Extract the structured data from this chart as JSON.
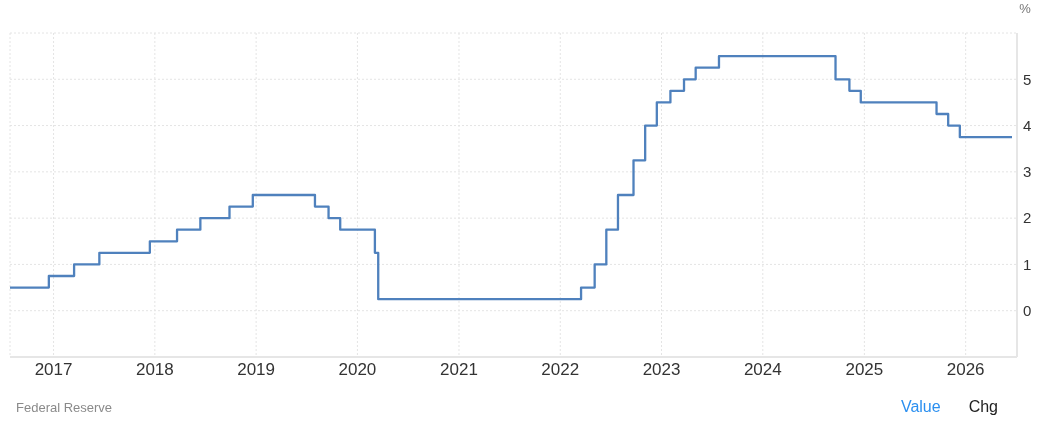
{
  "chart_data": {
    "type": "step",
    "ylabel": "%",
    "x": [
      "2016-07-28",
      "2016-12-15",
      "2017-03-16",
      "2017-06-15",
      "2017-12-14",
      "2018-03-22",
      "2018-06-14",
      "2018-09-27",
      "2018-12-20",
      "2019-08-01",
      "2019-09-19",
      "2019-10-31",
      "2020-03-04",
      "2020-03-16",
      "2022-03-17",
      "2022-05-05",
      "2022-06-16",
      "2022-07-28",
      "2022-09-22",
      "2022-11-03",
      "2022-12-15",
      "2023-02-02",
      "2023-03-23",
      "2023-05-04",
      "2023-07-27",
      "2024-09-19",
      "2024-11-08",
      "2024-12-19",
      "2025-09-18",
      "2025-10-30",
      "2025-12-11",
      "2026-06-17"
    ],
    "values": [
      0.5,
      0.75,
      1.0,
      1.25,
      1.5,
      1.75,
      2.0,
      2.25,
      2.5,
      2.25,
      2.0,
      1.75,
      1.25,
      0.25,
      0.5,
      1.0,
      1.75,
      2.5,
      3.25,
      4.0,
      4.5,
      4.75,
      5.0,
      5.25,
      5.5,
      5.0,
      4.75,
      4.5,
      4.25,
      4.0,
      3.75,
      3.75
    ],
    "color": "#4f81bd",
    "xlim": [
      "2016-07-28",
      "2026-07-05"
    ],
    "xticks": [
      "2017",
      "2018",
      "2019",
      "2020",
      "2021",
      "2022",
      "2023",
      "2024",
      "2025",
      "2026"
    ],
    "ylim": [
      -1,
      6
    ],
    "yticks": [
      0,
      1,
      2,
      3,
      4,
      5,
      {
        "value": 6,
        "label": null
      }
    ],
    "grid": true,
    "annotations": [
      "Federal Reserve",
      "Value",
      "Chg"
    ]
  }
}
